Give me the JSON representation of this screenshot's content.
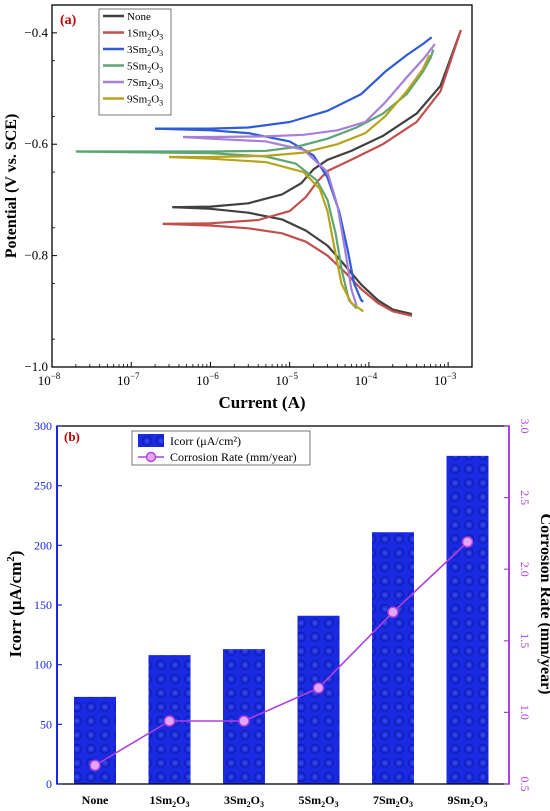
{
  "chart_data": [
    {
      "type": "line",
      "panel_label": "(a)",
      "xlabel": "Current (A)",
      "ylabel": "Potential (V vs. SCE)",
      "xscale": "log",
      "xlim": [
        1e-08,
        0.002
      ],
      "ylim": [
        -1.0,
        -0.35
      ],
      "ylim_direction": "inverted",
      "xticks": [
        {
          "value": 1e-08,
          "base": "10",
          "exp": "−8"
        },
        {
          "value": 1e-07,
          "base": "10",
          "exp": "−7"
        },
        {
          "value": 1e-06,
          "base": "10",
          "exp": "−6"
        },
        {
          "value": 1e-05,
          "base": "10",
          "exp": "−5"
        },
        {
          "value": 0.0001,
          "base": "10",
          "exp": "−4"
        },
        {
          "value": 0.001,
          "base": "10",
          "exp": "−3"
        }
      ],
      "yticks": [
        {
          "value": -0.4,
          "label": "−0.4"
        },
        {
          "value": -0.6,
          "label": "−0.6"
        },
        {
          "value": -0.8,
          "label": "−0.8"
        },
        {
          "value": -1.0,
          "label": "−1.0"
        }
      ],
      "legend_placement": "top-left",
      "series": [
        {
          "name": "None",
          "label_main": "None",
          "label_sub": "",
          "label_tail": "",
          "color": "#404040",
          "points": [
            [
              3.3e-07,
              -0.713
            ],
            [
              1e-06,
              -0.712
            ],
            [
              3e-06,
              -0.706
            ],
            [
              8e-06,
              -0.69
            ],
            [
              1.4e-05,
              -0.67
            ],
            [
              2e-05,
              -0.645
            ],
            [
              3e-05,
              -0.628
            ],
            [
              6e-05,
              -0.612
            ],
            [
              0.00015,
              -0.585
            ],
            [
              0.0004,
              -0.545
            ],
            [
              0.0008,
              -0.495
            ],
            [
              0.00145,
              -0.395
            ]
          ],
          "points2": [
            [
              3.3e-07,
              -0.713
            ],
            [
              1e-06,
              -0.716
            ],
            [
              3e-06,
              -0.723
            ],
            [
              8e-06,
              -0.735
            ],
            [
              1.6e-05,
              -0.755
            ],
            [
              3e-05,
              -0.782
            ],
            [
              5e-05,
              -0.818
            ],
            [
              8e-05,
              -0.852
            ],
            [
              0.00013,
              -0.88
            ],
            [
              0.0002,
              -0.897
            ],
            [
              0.00035,
              -0.905
            ]
          ]
        },
        {
          "name": "1Sm2O3",
          "label_main": "1Sm",
          "label_sub": "2",
          "label_tail": "O3",
          "color": "#c0504d",
          "points": [
            [
              2.5e-07,
              -0.743
            ],
            [
              1e-06,
              -0.742
            ],
            [
              4e-06,
              -0.736
            ],
            [
              1e-05,
              -0.72
            ],
            [
              1.6e-05,
              -0.695
            ],
            [
              2.2e-05,
              -0.668
            ],
            [
              3e-05,
              -0.648
            ],
            [
              6e-05,
              -0.628
            ],
            [
              0.00015,
              -0.6
            ],
            [
              0.0004,
              -0.56
            ],
            [
              0.0008,
              -0.505
            ],
            [
              0.00145,
              -0.395
            ]
          ],
          "points2": [
            [
              2.5e-07,
              -0.743
            ],
            [
              1e-06,
              -0.746
            ],
            [
              3e-06,
              -0.751
            ],
            [
              8e-06,
              -0.76
            ],
            [
              1.6e-05,
              -0.775
            ],
            [
              3e-05,
              -0.8
            ],
            [
              5e-05,
              -0.83
            ],
            [
              8e-05,
              -0.86
            ],
            [
              0.00013,
              -0.885
            ],
            [
              0.0002,
              -0.9
            ],
            [
              0.00035,
              -0.908
            ]
          ]
        },
        {
          "name": "3Sm2O3",
          "label_main": "3Sm",
          "label_sub": "2",
          "label_tail": "O3",
          "color": "#2e5bd8",
          "points": [
            [
              2e-07,
              -0.572
            ],
            [
              1e-06,
              -0.572
            ],
            [
              3e-06,
              -0.57
            ],
            [
              1e-05,
              -0.56
            ],
            [
              3e-05,
              -0.54
            ],
            [
              8e-05,
              -0.51
            ],
            [
              0.00016,
              -0.47
            ],
            [
              0.0003,
              -0.44
            ],
            [
              0.00048,
              -0.42
            ],
            [
              0.00062,
              -0.408
            ]
          ],
          "points2": [
            [
              2e-07,
              -0.572
            ],
            [
              1e-06,
              -0.575
            ],
            [
              3e-06,
              -0.58
            ],
            [
              1e-05,
              -0.595
            ],
            [
              2e-05,
              -0.62
            ],
            [
              3e-05,
              -0.66
            ],
            [
              4.2e-05,
              -0.72
            ],
            [
              5.4e-05,
              -0.79
            ],
            [
              6.5e-05,
              -0.85
            ],
            [
              8e-05,
              -0.88
            ],
            [
              8.5e-05,
              -0.883
            ]
          ]
        },
        {
          "name": "5Sm2O3",
          "label_main": "5Sm",
          "label_sub": "2",
          "label_tail": "O3",
          "color": "#5ea574",
          "points": [
            [
              2e-08,
              -0.613
            ],
            [
              1e-06,
              -0.613
            ],
            [
              5e-06,
              -0.612
            ],
            [
              1.2e-05,
              -0.605
            ],
            [
              3e-05,
              -0.59
            ],
            [
              7e-05,
              -0.57
            ],
            [
              0.00015,
              -0.545
            ],
            [
              0.0003,
              -0.51
            ],
            [
              0.00048,
              -0.47
            ],
            [
              0.0006,
              -0.445
            ],
            [
              0.00065,
              -0.43
            ]
          ],
          "points2": [
            [
              2e-08,
              -0.613
            ],
            [
              1e-06,
              -0.616
            ],
            [
              5e-06,
              -0.622
            ],
            [
              1.2e-05,
              -0.635
            ],
            [
              2.2e-05,
              -0.665
            ],
            [
              3e-05,
              -0.7
            ],
            [
              3.8e-05,
              -0.76
            ],
            [
              4.6e-05,
              -0.83
            ],
            [
              5.6e-05,
              -0.88
            ],
            [
              7e-05,
              -0.895
            ]
          ]
        },
        {
          "name": "7Sm2O3",
          "label_main": "7Sm",
          "label_sub": "2",
          "label_tail": "O3",
          "color": "#a680d8",
          "points": [
            [
              4.5e-07,
              -0.587
            ],
            [
              1e-06,
              -0.587
            ],
            [
              5e-06,
              -0.586
            ],
            [
              1.5e-05,
              -0.583
            ],
            [
              4e-05,
              -0.575
            ],
            [
              9e-05,
              -0.56
            ],
            [
              0.00016,
              -0.525
            ],
            [
              0.0003,
              -0.48
            ],
            [
              0.0005,
              -0.445
            ],
            [
              0.00068,
              -0.42
            ]
          ],
          "points2": [
            [
              4.5e-07,
              -0.587
            ],
            [
              1e-06,
              -0.59
            ],
            [
              5e-06,
              -0.595
            ],
            [
              1.5e-05,
              -0.61
            ],
            [
              3e-05,
              -0.65
            ],
            [
              4e-05,
              -0.71
            ],
            [
              5e-05,
              -0.79
            ],
            [
              6e-05,
              -0.86
            ],
            [
              7e-05,
              -0.89
            ]
          ]
        },
        {
          "name": "9Sm2O3",
          "label_main": "9Sm",
          "label_sub": "2",
          "label_tail": "O3",
          "color": "#b8a41c",
          "points": [
            [
              3e-07,
              -0.623
            ],
            [
              1e-06,
              -0.623
            ],
            [
              5e-06,
              -0.621
            ],
            [
              1.5e-05,
              -0.615
            ],
            [
              4e-05,
              -0.6
            ],
            [
              9e-05,
              -0.58
            ],
            [
              0.00016,
              -0.55
            ],
            [
              0.0003,
              -0.505
            ],
            [
              0.00048,
              -0.465
            ],
            [
              0.00058,
              -0.44
            ]
          ],
          "points2": [
            [
              3e-07,
              -0.623
            ],
            [
              1e-06,
              -0.626
            ],
            [
              5e-06,
              -0.632
            ],
            [
              1.5e-05,
              -0.65
            ],
            [
              2.4e-05,
              -0.68
            ],
            [
              3e-05,
              -0.72
            ],
            [
              3.6e-05,
              -0.78
            ],
            [
              4.5e-05,
              -0.85
            ],
            [
              6e-05,
              -0.885
            ],
            [
              8.5e-05,
              -0.9
            ]
          ]
        }
      ]
    },
    {
      "type": "bar",
      "panel_label": "(b)",
      "categories": [
        {
          "main": "None",
          "sub": "",
          "tail": ""
        },
        {
          "main": "1Sm",
          "sub": "2",
          "tail": "O",
          "sub2": "3"
        },
        {
          "main": "3Sm",
          "sub": "2",
          "tail": "O",
          "sub2": "3"
        },
        {
          "main": "5Sm",
          "sub": "2",
          "tail": "O",
          "sub2": "3"
        },
        {
          "main": "7Sm",
          "sub": "2",
          "tail": "O",
          "sub2": "3"
        },
        {
          "main": "9Sm",
          "sub": "2",
          "tail": "O",
          "sub2": "3"
        }
      ],
      "ylabel": "Icorr (μA/cm²)",
      "ylabel_left_main": "Icorr (μA/cm",
      "ylabel_left_sup": "2",
      "ylabel_left_tail": ")",
      "y2label": "Corrosion Rate (mm/year)",
      "ylim": [
        0,
        300
      ],
      "y2lim": [
        0.5,
        3.0
      ],
      "yticks": [
        "0",
        "50",
        "100",
        "150",
        "200",
        "250",
        "300"
      ],
      "y2ticks": [
        "0.5",
        "1.0",
        "1.5",
        "2.0",
        "2.5",
        "3.0"
      ],
      "legend_placement": "top-left",
      "bar_color": "#1a28e6",
      "line_color": "#b03fdf",
      "series": [
        {
          "name": "Icorr (μA/cm²)",
          "axis": "left",
          "values": [
            73,
            108,
            113,
            141,
            211,
            275
          ]
        },
        {
          "name": "Corrosion Rate (mm/year)",
          "axis": "right",
          "values": [
            0.63,
            0.94,
            0.94,
            1.17,
            1.7,
            2.19
          ]
        }
      ]
    }
  ]
}
